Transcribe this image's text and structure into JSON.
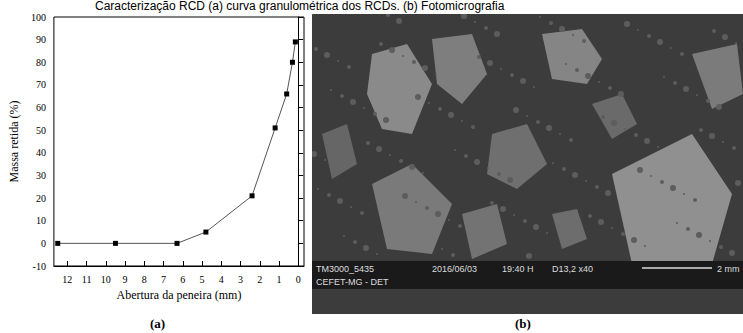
{
  "chart_data": {
    "type": "line",
    "x_label": "Abertura da peneira (mm)",
    "y_label": "Massa retida (%)",
    "x": [
      12.5,
      9.5,
      6.3,
      4.8,
      2.4,
      1.2,
      0.6,
      0.3,
      0.15
    ],
    "values": [
      0,
      0,
      0,
      5,
      21,
      51,
      66,
      80,
      89
    ],
    "color": "#555555",
    "marker": "square",
    "xlim": [
      12.7,
      -0.3
    ],
    "xticks": [
      12,
      11,
      10,
      9,
      8,
      7,
      6,
      5,
      4,
      3,
      2,
      1,
      0
    ],
    "ylim": [
      -10,
      100
    ],
    "yticks": [
      -10,
      0,
      10,
      20,
      30,
      40,
      50,
      60,
      70,
      80,
      90,
      100
    ],
    "grid": false
  },
  "figure": {
    "caption": "Caracterização RCD  (a) curva granulométrica dos RCDs. (b) Fotomicrografia",
    "panel_labels": [
      "(a)",
      "(b)"
    ],
    "micrograph": {
      "texts": [
        "TM3000_5435",
        "CEFET-MG - DET",
        "2016/06/03",
        "19:40 H",
        "D13,2 x40",
        "2 mm"
      ]
    }
  }
}
